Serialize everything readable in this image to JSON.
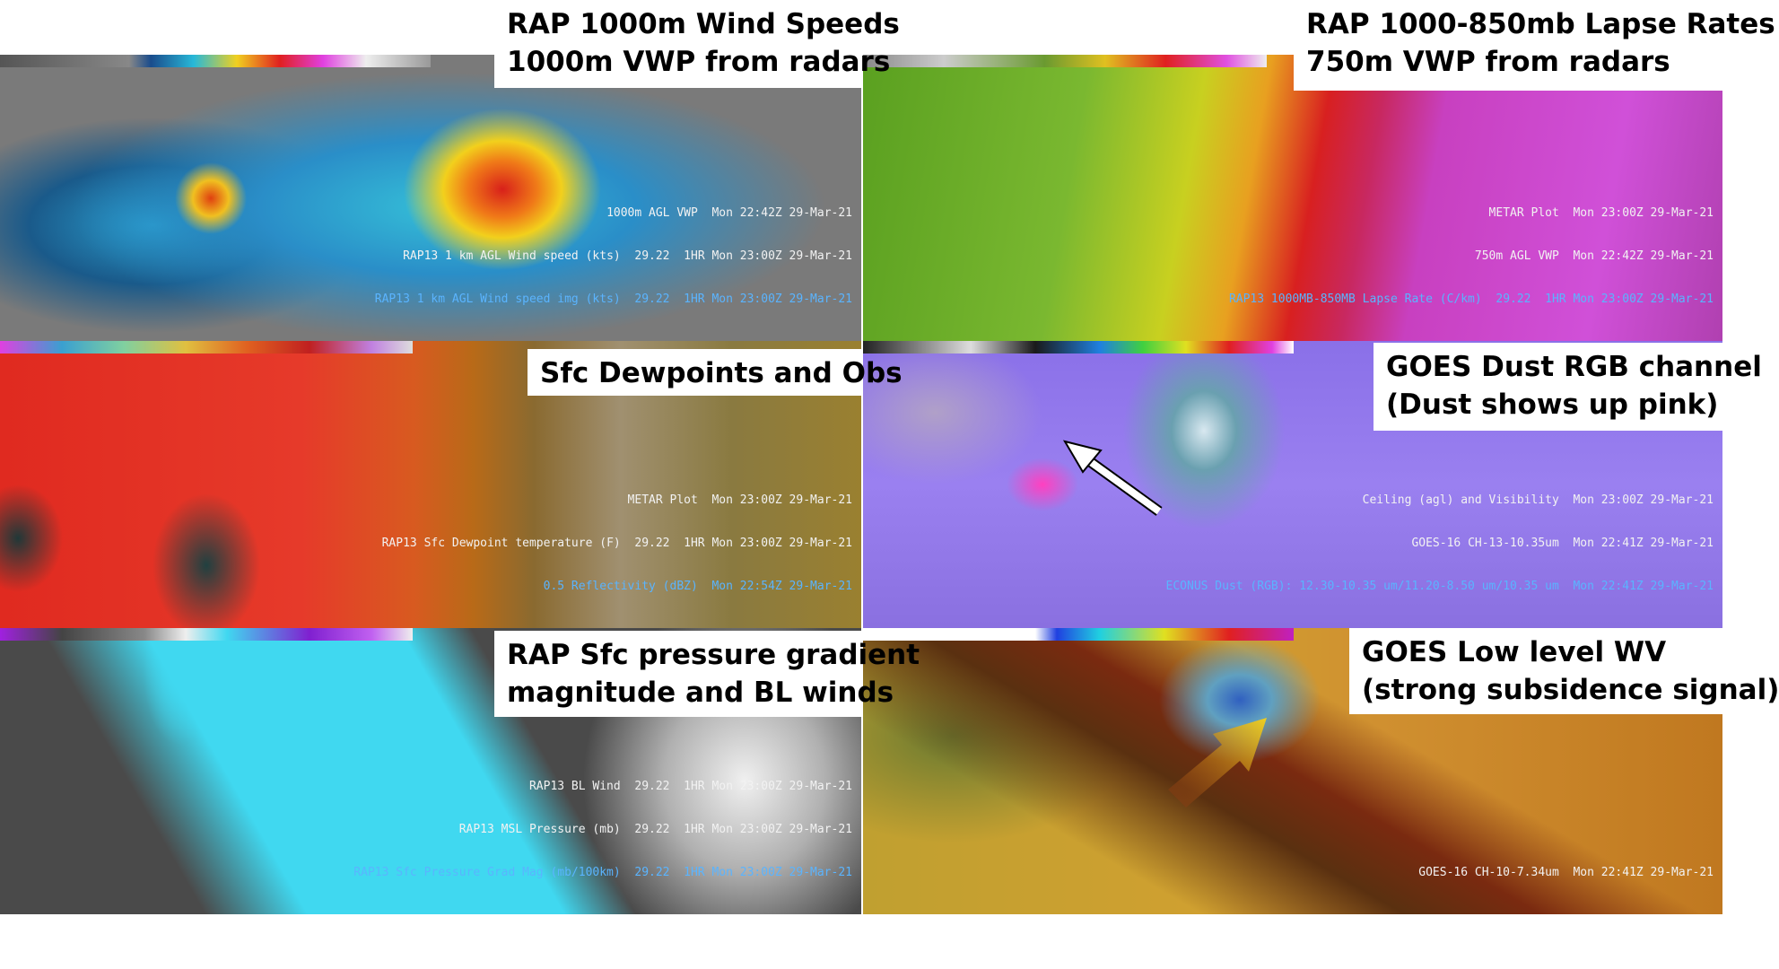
{
  "panels": [
    {
      "title_lines": [
        "RAP 1000m Wind Speeds",
        "1000m VWP from radars"
      ],
      "footer_lines": [
        "1000m AGL VWP  Mon 22:42Z 29-Mar-21",
        "RAP13 1 km AGL Wind speed (kts)  29.22  1HR Mon 23:00Z 29-Mar-21",
        "RAP13 1 km AGL Wind speed img (kts)  29.22  1HR Mon 23:00Z 29-Mar-21"
      ]
    },
    {
      "title_lines": [
        "RAP 1000-850mb Lapse Rates",
        "750m VWP from radars"
      ],
      "footer_lines": [
        "METAR Plot  Mon 23:00Z 29-Mar-21",
        "750m AGL VWP  Mon 22:42Z 29-Mar-21",
        "RAP13 1000MB-850MB Lapse Rate (C/km)  29.22  1HR Mon 23:00Z 29-Mar-21"
      ]
    },
    {
      "title_lines": [
        "Sfc Dewpoints and Obs"
      ],
      "footer_lines": [
        "METAR Plot  Mon 23:00Z 29-Mar-21",
        "RAP13 Sfc Dewpoint temperature (F)  29.22  1HR Mon 23:00Z 29-Mar-21",
        "0.5 Reflectivity (dBZ)  Mon 22:54Z 29-Mar-21"
      ]
    },
    {
      "title_lines": [
        "GOES Dust RGB channel",
        "(Dust shows up pink)"
      ],
      "footer_lines": [
        "Ceiling (agl) and Visibility  Mon 23:00Z 29-Mar-21",
        "GOES-16 CH-13-10.35um  Mon 22:41Z 29-Mar-21",
        "ECONUS Dust (RGB): 12.30-10.35 um/11.20-8.50 um/10.35 um  Mon 22:41Z 29-Mar-21"
      ]
    },
    {
      "title_lines": [
        "RAP Sfc pressure gradient",
        "magnitude and BL winds"
      ],
      "footer_lines": [
        "RAP13 BL Wind  29.22  1HR Mon 23:00Z 29-Mar-21",
        "RAP13 MSL Pressure (mb)  29.22  1HR Mon 23:00Z 29-Mar-21",
        "RAP13 Sfc Pressure Grad Mag (mb/100km)  29.22  1HR Mon 23:00Z 29-Mar-21"
      ]
    },
    {
      "title_lines": [
        "GOES Low level WV",
        "(strong subsidence signal)"
      ],
      "footer_lines": [
        "GOES-16 CH-10-7.34um  Mon 22:41Z 29-Mar-21"
      ]
    }
  ]
}
